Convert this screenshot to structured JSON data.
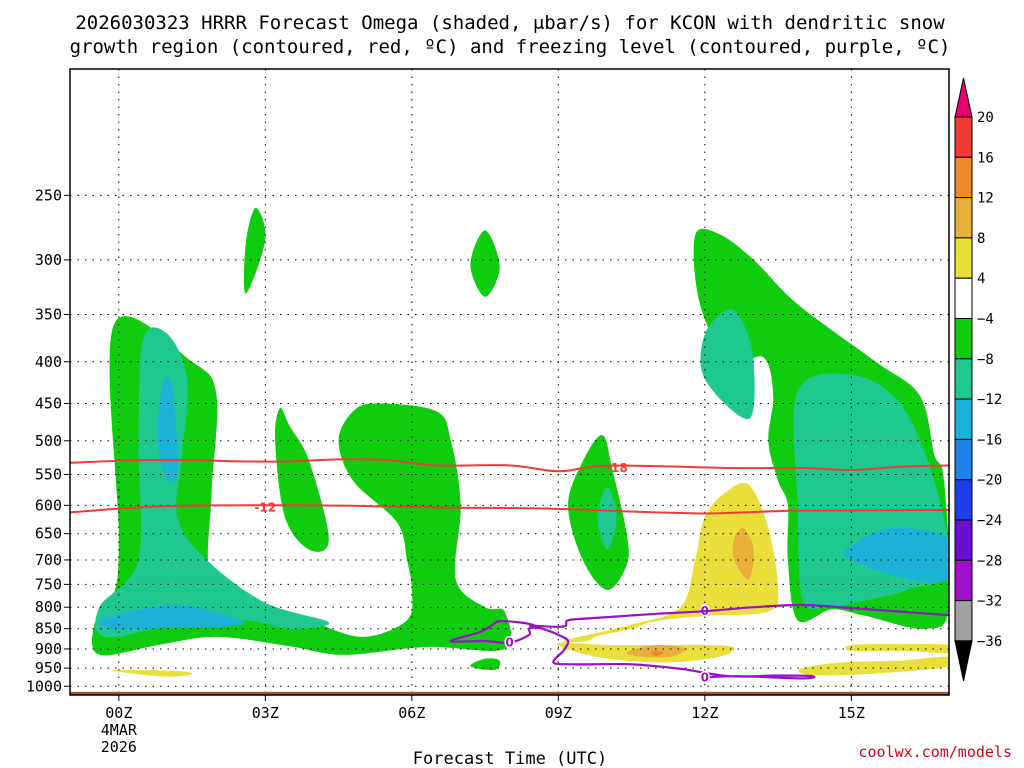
{
  "chart_data": {
    "type": "contour",
    "title_line1": "2026030323 HRRR Forecast Omega (shaded, μbar/s) for KCON with dendritic snow",
    "title_line2": "growth region (contoured, red, ºC) and freezing level (contoured, purple, ºC)",
    "xlabel": "Forecast Time (UTC)",
    "ylabel": "",
    "x_unit": "forecast hour",
    "xlim": [
      -1,
      17
    ],
    "ylim_hpa": [
      1025,
      175
    ],
    "x_ticks": [
      {
        "hour": 0,
        "label": "00Z",
        "sub1": "4MAR",
        "sub2": "2026"
      },
      {
        "hour": 3,
        "label": "03Z"
      },
      {
        "hour": 6,
        "label": "06Z"
      },
      {
        "hour": 9,
        "label": "09Z"
      },
      {
        "hour": 12,
        "label": "12Z"
      },
      {
        "hour": 15,
        "label": "15Z"
      }
    ],
    "y_ticks": [
      250,
      300,
      350,
      400,
      450,
      500,
      550,
      600,
      650,
      700,
      750,
      800,
      850,
      900,
      950,
      1000
    ],
    "colorbar": {
      "labels": [
        "20",
        "16",
        "12",
        "8",
        "4",
        "−4",
        "−8",
        "−12",
        "−16",
        "−20",
        "−24",
        "−28",
        "−32",
        "−36"
      ],
      "colors": [
        "#e8006e",
        "#ef3a3a",
        "#ef8a2a",
        "#e8b03a",
        "#eadf3a",
        "#ffffff",
        "#0fcc0f",
        "#1ec88f",
        "#1ab3d6",
        "#1e82e8",
        "#1e3fe8",
        "#6a0fcf",
        "#a30fcf",
        "#a0a0a0",
        "#000000"
      ]
    },
    "omega_regions": [
      {
        "level": -4,
        "points": [
          [
            2.8,
            259
          ],
          [
            3.0,
            283
          ],
          [
            2.6,
            330
          ],
          [
            2.6,
            286
          ]
        ]
      },
      {
        "level": -4,
        "points": [
          [
            7.5,
            276
          ],
          [
            7.8,
            306
          ],
          [
            7.5,
            333
          ],
          [
            7.2,
            304
          ]
        ]
      },
      {
        "level": -4,
        "points": [
          [
            -0.1,
            360
          ],
          [
            1.5,
            400
          ],
          [
            2.0,
            440
          ],
          [
            1.9,
            580
          ],
          [
            1.9,
            740
          ],
          [
            2.9,
            790
          ],
          [
            4.0,
            835
          ],
          [
            5.0,
            870
          ],
          [
            5.9,
            830
          ],
          [
            6.0,
            760
          ],
          [
            5.9,
            700
          ],
          [
            5.7,
            630
          ],
          [
            4.8,
            560
          ],
          [
            4.5,
            500
          ],
          [
            4.8,
            460
          ],
          [
            5.3,
            450
          ],
          [
            6.5,
            460
          ],
          [
            6.8,
            500
          ],
          [
            7.0,
            600
          ],
          [
            6.9,
            740
          ],
          [
            7.5,
            800
          ],
          [
            7.9,
            810
          ],
          [
            7.9,
            900
          ],
          [
            6.3,
            895
          ],
          [
            4.6,
            915
          ],
          [
            3.5,
            893
          ],
          [
            2.0,
            870
          ],
          [
            0.8,
            890
          ],
          [
            -0.4,
            915
          ],
          [
            -0.5,
            840
          ],
          [
            -0.1,
            770
          ],
          [
            0.0,
            650
          ]
        ]
      },
      {
        "level": -4,
        "points": [
          [
            3.3,
            456
          ],
          [
            3.5,
            480
          ],
          [
            3.9,
            530
          ],
          [
            4.3,
            660
          ],
          [
            3.9,
            680
          ],
          [
            3.4,
            620
          ],
          [
            3.2,
            500
          ]
        ]
      },
      {
        "level": -4,
        "points": [
          [
            9.9,
            492
          ],
          [
            10.1,
            540
          ],
          [
            10.4,
            650
          ],
          [
            10.4,
            710
          ],
          [
            10.0,
            762
          ],
          [
            9.5,
            700
          ],
          [
            9.2,
            600
          ],
          [
            9.5,
            530
          ]
        ]
      },
      {
        "level": -4,
        "points": [
          [
            12.3,
            279
          ],
          [
            13.0,
            300
          ],
          [
            13.9,
            340
          ],
          [
            15.5,
            400
          ],
          [
            16.4,
            440
          ],
          [
            16.7,
            520
          ],
          [
            16.9,
            560
          ],
          [
            17.0,
            800
          ],
          [
            16.5,
            850
          ],
          [
            15.3,
            820
          ],
          [
            14.6,
            805
          ],
          [
            13.9,
            830
          ],
          [
            13.7,
            700
          ],
          [
            13.7,
            600
          ],
          [
            13.5,
            560
          ],
          [
            13.3,
            500
          ],
          [
            13.4,
            440
          ],
          [
            13.2,
            395
          ],
          [
            12.5,
            400
          ],
          [
            11.9,
            340
          ],
          [
            11.8,
            280
          ]
        ]
      },
      {
        "level": -4,
        "points": [
          [
            7.5,
            925
          ],
          [
            7.8,
            930
          ],
          [
            7.7,
            955
          ],
          [
            7.2,
            945
          ]
        ]
      },
      {
        "level": -8,
        "points": [
          [
            0.5,
            375
          ],
          [
            1.0,
            370
          ],
          [
            1.4,
            420
          ],
          [
            1.3,
            520
          ],
          [
            1.2,
            620
          ],
          [
            1.8,
            700
          ],
          [
            3.0,
            790
          ],
          [
            4.3,
            835
          ],
          [
            3.5,
            850
          ],
          [
            2.5,
            830
          ],
          [
            1.0,
            845
          ],
          [
            -0.3,
            870
          ],
          [
            -0.4,
            800
          ],
          [
            0.4,
            700
          ],
          [
            0.4,
            500
          ]
        ]
      },
      {
        "level": -8,
        "points": [
          [
            10.0,
            570
          ],
          [
            10.2,
            620
          ],
          [
            10.0,
            680
          ],
          [
            9.8,
            620
          ]
        ]
      },
      {
        "level": -8,
        "points": [
          [
            12.5,
            345
          ],
          [
            12.8,
            360
          ],
          [
            13.0,
            400
          ],
          [
            12.9,
            470
          ],
          [
            12.0,
            420
          ],
          [
            12.0,
            370
          ]
        ]
      },
      {
        "level": -8,
        "points": [
          [
            13.9,
            435
          ],
          [
            15.0,
            415
          ],
          [
            16.0,
            450
          ],
          [
            16.7,
            560
          ],
          [
            17.0,
            720
          ],
          [
            16.2,
            760
          ],
          [
            15.5,
            780
          ],
          [
            14.5,
            800
          ],
          [
            14.0,
            780
          ],
          [
            13.9,
            600
          ]
        ]
      },
      {
        "level": -12,
        "points": [
          [
            0.9,
            425
          ],
          [
            1.1,
            430
          ],
          [
            1.2,
            540
          ],
          [
            1.0,
            560
          ],
          [
            0.8,
            500
          ]
        ]
      },
      {
        "level": -12,
        "points": [
          [
            -0.3,
            825
          ],
          [
            1.2,
            795
          ],
          [
            2.5,
            830
          ],
          [
            2.2,
            845
          ],
          [
            0.5,
            850
          ],
          [
            -0.2,
            850
          ]
        ]
      },
      {
        "level": -12,
        "points": [
          [
            14.9,
            680
          ],
          [
            15.8,
            640
          ],
          [
            17.0,
            660
          ],
          [
            17.0,
            740
          ],
          [
            16.0,
            735
          ],
          [
            15.0,
            700
          ]
        ]
      },
      {
        "level": 4,
        "points": [
          [
            12.9,
            566
          ],
          [
            13.3,
            640
          ],
          [
            13.5,
            760
          ],
          [
            13.3,
            810
          ],
          [
            12.0,
            820
          ],
          [
            11.0,
            832
          ],
          [
            10.5,
            850
          ],
          [
            9.8,
            868
          ],
          [
            9.6,
            880
          ],
          [
            9.1,
            880
          ],
          [
            10.5,
            840
          ],
          [
            11.5,
            800
          ],
          [
            11.8,
            700
          ],
          [
            12.0,
            620
          ],
          [
            12.4,
            580
          ]
        ]
      },
      {
        "level": 4,
        "points": [
          [
            9.0,
            885
          ],
          [
            10.0,
            890
          ],
          [
            11.0,
            890
          ],
          [
            12.0,
            890
          ],
          [
            12.6,
            896
          ],
          [
            12.3,
            920
          ],
          [
            11.2,
            935
          ],
          [
            10.0,
            925
          ],
          [
            9.3,
            905
          ]
        ]
      },
      {
        "level": 4,
        "points": [
          [
            14.0,
            950
          ],
          [
            14.8,
            935
          ],
          [
            16.0,
            930
          ],
          [
            17.0,
            920
          ],
          [
            17.0,
            945
          ],
          [
            16.0,
            960
          ],
          [
            14.6,
            970
          ],
          [
            14.0,
            965
          ]
        ]
      },
      {
        "level": 4,
        "points": [
          [
            15.0,
            890
          ],
          [
            16.0,
            888
          ],
          [
            17.0,
            890
          ],
          [
            17.0,
            910
          ],
          [
            16.0,
            905
          ],
          [
            15.0,
            905
          ]
        ]
      },
      {
        "level": 4,
        "points": [
          [
            0.0,
            955
          ],
          [
            1.2,
            958
          ],
          [
            1.5,
            966
          ],
          [
            1.0,
            973
          ],
          [
            0.0,
            960
          ]
        ]
      },
      {
        "level": 8,
        "points": [
          [
            12.8,
            640
          ],
          [
            13.0,
            680
          ],
          [
            12.9,
            740
          ],
          [
            12.6,
            700
          ],
          [
            12.6,
            660
          ]
        ]
      },
      {
        "level": 8,
        "points": [
          [
            10.4,
            908
          ],
          [
            11.0,
            890
          ],
          [
            11.6,
            900
          ],
          [
            11.3,
            920
          ],
          [
            10.7,
            920
          ]
        ]
      },
      {
        "level": 12,
        "points": [
          [
            11.0,
            904
          ],
          [
            11.15,
            910
          ],
          [
            11.0,
            918
          ],
          [
            10.9,
            910
          ]
        ]
      }
    ],
    "temperature_contours": [
      {
        "value": -18,
        "label": "-18",
        "label_at": [
          10.2,
          540
        ],
        "color": "#ef3a3a",
        "points": [
          [
            -1,
            532
          ],
          [
            0.5,
            528
          ],
          [
            1.5,
            528
          ],
          [
            2.5,
            530
          ],
          [
            3.5,
            530
          ],
          [
            4.5,
            527
          ],
          [
            5.5,
            528
          ],
          [
            6.5,
            536
          ],
          [
            8.0,
            536
          ],
          [
            9.0,
            545
          ],
          [
            9.8,
            537
          ],
          [
            11.0,
            537
          ],
          [
            12.5,
            540
          ],
          [
            14.0,
            540
          ],
          [
            15.0,
            543
          ],
          [
            16.0,
            538
          ],
          [
            17.0,
            536
          ]
        ]
      },
      {
        "value": -12,
        "label": "-12",
        "label_at": [
          3.0,
          604
        ],
        "color": "#ef3a3a",
        "points": [
          [
            -1,
            612
          ],
          [
            0.5,
            603
          ],
          [
            2.0,
            600
          ],
          [
            4.0,
            600
          ],
          [
            5.5,
            602
          ],
          [
            7.0,
            604
          ],
          [
            8.5,
            605
          ],
          [
            10.0,
            609
          ],
          [
            11.0,
            612
          ],
          [
            12.0,
            614
          ],
          [
            12.8,
            612
          ],
          [
            14.0,
            609
          ],
          [
            17.0,
            608
          ]
        ]
      }
    ],
    "freezing_contours": [
      {
        "value": 0,
        "label": "0",
        "color": "#9a10c8",
        "labels_at": [
          [
            12.0,
            809
          ],
          [
            8.0,
            884
          ],
          [
            12.0,
            975
          ]
        ],
        "points": [
          [
            7.7,
            837
          ],
          [
            7.4,
            858
          ],
          [
            6.8,
            880
          ],
          [
            7.5,
            880
          ],
          [
            8.0,
            884
          ],
          [
            8.4,
            865
          ],
          [
            8.4,
            850
          ],
          [
            8.6,
            848
          ],
          [
            8.8,
            855
          ],
          [
            9.0,
            865
          ],
          [
            9.2,
            880
          ],
          [
            9.1,
            905
          ],
          [
            8.9,
            935
          ],
          [
            9.3,
            940
          ],
          [
            10.5,
            940
          ],
          [
            11.5,
            952
          ],
          [
            12.5,
            972
          ],
          [
            13.5,
            970
          ],
          [
            14.2,
            972
          ],
          [
            14.0,
            978
          ],
          [
            12.7,
            972
          ],
          [
            12.0,
            975
          ]
        ]
      },
      {
        "value": 0,
        "label": "0",
        "color": "#9a10c8",
        "points": [
          [
            8.4,
            842
          ],
          [
            9.1,
            845
          ],
          [
            9.2,
            830
          ],
          [
            9.7,
            825
          ],
          [
            11.0,
            815
          ],
          [
            12.0,
            809
          ],
          [
            13.0,
            800
          ],
          [
            14.0,
            795
          ],
          [
            15.0,
            802
          ],
          [
            16.0,
            810
          ],
          [
            17.0,
            818
          ]
        ]
      },
      {
        "value": 0,
        "label": "0",
        "color": "#9a10c8",
        "points": [
          [
            7.7,
            837
          ],
          [
            7.8,
            832
          ],
          [
            8.2,
            835
          ],
          [
            8.5,
            842
          ],
          [
            8.4,
            850
          ]
        ]
      }
    ],
    "terrain": {
      "color": "#a8522a",
      "top_hpa": 1016
    }
  },
  "credit": "coolwx.com/models"
}
